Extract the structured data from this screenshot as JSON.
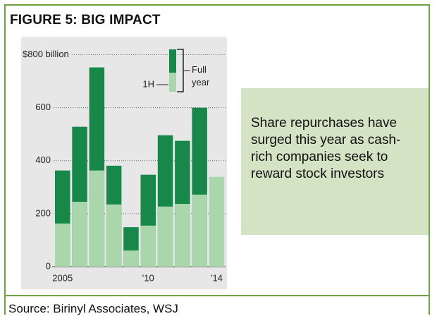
{
  "title": "FIGURE 5: BIG IMPACT",
  "note": "Share repurchases have surged this year as cash-rich companies seek to reward stock investors",
  "source": "Source: Birinyl Associates, WSJ",
  "chart_data": {
    "type": "bar",
    "categories": [
      "2005",
      null,
      null,
      null,
      null,
      "'10",
      null,
      null,
      null,
      "'14"
    ],
    "series": [
      {
        "name": "Full year",
        "color": "#17884a",
        "values": [
          363,
          528,
          752,
          381,
          149,
          347,
          496,
          475,
          600,
          null
        ]
      },
      {
        "name": "1H",
        "color": "#a9d6ab",
        "values": [
          163,
          245,
          363,
          235,
          61,
          155,
          227,
          237,
          272,
          339
        ]
      }
    ],
    "ylim": [
      0,
      860
    ],
    "yticks": [
      0,
      200,
      400,
      600,
      {
        "value": 800,
        "label": "$800 billion"
      }
    ],
    "grid": true
  }
}
